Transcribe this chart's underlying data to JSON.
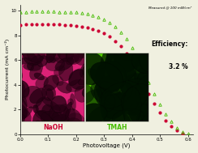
{
  "title": "",
  "xlabel": "Photovoltage (V)",
  "ylabel": "Photocurrent (mA cm⁻²)",
  "annotation_line1": "Measured @ 100 mW/cm²",
  "annotation_line2": "Efficiency:",
  "annotation_line3": "3.2 %",
  "xlim": [
    0.0,
    0.62
  ],
  "ylim": [
    0,
    10.5
  ],
  "yticks": [
    0,
    2,
    4,
    6,
    8,
    10
  ],
  "xticks": [
    0.0,
    0.1,
    0.2,
    0.3,
    0.4,
    0.5,
    0.6
  ],
  "naoh_color": "#cc0033",
  "tmah_color": "#44bb00",
  "naoh_label": "NaOH",
  "tmah_label": "TMAH",
  "bg_color": "#f0f0e0",
  "naoh_image_color": "#dd2277",
  "tmah_image_color": "#55cc00",
  "naoh_x": [
    0.0,
    0.02,
    0.04,
    0.06,
    0.08,
    0.1,
    0.12,
    0.14,
    0.16,
    0.18,
    0.2,
    0.22,
    0.24,
    0.26,
    0.28,
    0.3,
    0.32,
    0.34,
    0.36,
    0.38,
    0.4,
    0.42,
    0.44,
    0.46,
    0.48,
    0.5,
    0.52,
    0.54,
    0.56,
    0.58
  ],
  "naoh_y": [
    8.85,
    8.9,
    8.92,
    8.93,
    8.93,
    8.92,
    8.9,
    8.88,
    8.85,
    8.82,
    8.78,
    8.72,
    8.64,
    8.52,
    8.38,
    8.18,
    7.92,
    7.55,
    7.1,
    6.52,
    5.85,
    5.05,
    4.18,
    3.28,
    2.48,
    1.72,
    1.12,
    0.62,
    0.28,
    0.06
  ],
  "tmah_x": [
    0.0,
    0.02,
    0.04,
    0.06,
    0.08,
    0.1,
    0.12,
    0.14,
    0.16,
    0.18,
    0.2,
    0.22,
    0.24,
    0.26,
    0.28,
    0.3,
    0.32,
    0.34,
    0.36,
    0.38,
    0.4,
    0.42,
    0.44,
    0.46,
    0.48,
    0.5,
    0.52,
    0.54,
    0.56,
    0.58,
    0.6
  ],
  "tmah_y": [
    9.85,
    9.9,
    9.92,
    9.93,
    9.93,
    9.93,
    9.92,
    9.91,
    9.9,
    9.88,
    9.85,
    9.8,
    9.73,
    9.63,
    9.5,
    9.3,
    9.05,
    8.7,
    8.25,
    7.7,
    7.0,
    6.15,
    5.2,
    4.2,
    3.25,
    2.38,
    1.62,
    1.0,
    0.52,
    0.18,
    0.02
  ]
}
